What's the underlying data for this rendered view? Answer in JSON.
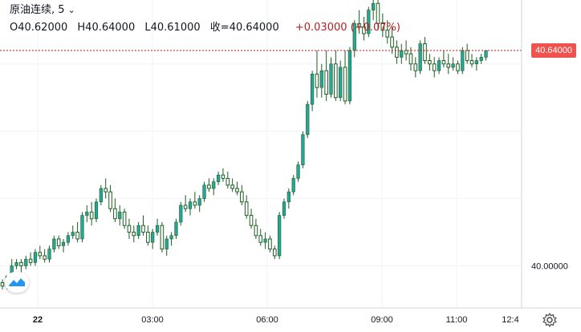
{
  "legend": {
    "symbol": "原油连续",
    "interval": ", 5",
    "caret": "⌄",
    "open": "O40.62000",
    "high": "H40.64000",
    "low": "L40.61000",
    "close_label": "收=",
    "close_value": "40.64000",
    "change": "+0.03000 (+0.07%)"
  },
  "last_price_label": "40.64000",
  "icons": {
    "logo": "tradingview-logo-icon",
    "settings": "gear-icon"
  },
  "colors": {
    "up": "#26a69a",
    "down": "#ef5350",
    "candle_body_dark": "#1b5e20",
    "wick": "#1b5e20",
    "grid": "#f0f3fa",
    "price_line": "#b71c1c"
  },
  "chart_data": {
    "type": "candlestick",
    "y_axis": {
      "min": 39.875,
      "max": 40.79,
      "ticks": [
        40.0
      ]
    },
    "x_ticks": [
      "22",
      "03:00",
      "06:00",
      "09:00",
      "11:00",
      "12:4"
    ],
    "last_price": 40.64,
    "candles": [
      [
        39.95,
        39.96,
        39.93,
        39.94
      ],
      [
        39.94,
        39.97,
        39.93,
        39.97
      ],
      [
        39.97,
        40.02,
        39.96,
        40.0
      ],
      [
        40.0,
        40.02,
        39.99,
        40.01
      ],
      [
        40.01,
        40.02,
        39.98,
        40.0
      ],
      [
        40.0,
        40.03,
        39.99,
        40.02
      ],
      [
        40.02,
        40.04,
        40.0,
        40.01
      ],
      [
        40.01,
        40.05,
        40.0,
        40.04
      ],
      [
        40.04,
        40.06,
        40.02,
        40.03
      ],
      [
        40.03,
        40.05,
        40.01,
        40.02
      ],
      [
        40.02,
        40.06,
        40.01,
        40.05
      ],
      [
        40.05,
        40.09,
        40.04,
        40.08
      ],
      [
        40.08,
        40.09,
        40.05,
        40.06
      ],
      [
        40.06,
        40.08,
        40.04,
        40.07
      ],
      [
        40.07,
        40.1,
        40.06,
        40.09
      ],
      [
        40.09,
        40.12,
        40.08,
        40.1
      ],
      [
        40.1,
        40.13,
        40.07,
        40.08
      ],
      [
        40.08,
        40.16,
        40.07,
        40.15
      ],
      [
        40.15,
        40.18,
        40.13,
        40.16
      ],
      [
        40.16,
        40.19,
        40.12,
        40.14
      ],
      [
        40.14,
        40.2,
        40.13,
        40.19
      ],
      [
        40.19,
        40.24,
        40.18,
        40.23
      ],
      [
        40.23,
        40.26,
        40.2,
        40.22
      ],
      [
        40.22,
        40.24,
        40.16,
        40.17
      ],
      [
        40.17,
        40.2,
        40.13,
        40.14
      ],
      [
        40.14,
        40.18,
        40.12,
        40.16
      ],
      [
        40.16,
        40.17,
        40.11,
        40.12
      ],
      [
        40.12,
        40.14,
        40.08,
        40.1
      ],
      [
        40.1,
        40.12,
        40.07,
        40.09
      ],
      [
        40.09,
        40.13,
        40.08,
        40.12
      ],
      [
        40.12,
        40.15,
        40.09,
        40.1
      ],
      [
        40.1,
        40.12,
        40.06,
        40.07
      ],
      [
        40.07,
        40.11,
        40.05,
        40.1
      ],
      [
        40.1,
        40.14,
        40.09,
        40.12
      ],
      [
        40.12,
        40.13,
        40.04,
        40.05
      ],
      [
        40.05,
        40.09,
        40.03,
        40.08
      ],
      [
        40.08,
        40.1,
        40.06,
        40.09
      ],
      [
        40.09,
        40.14,
        40.08,
        40.13
      ],
      [
        40.13,
        40.19,
        40.12,
        40.18
      ],
      [
        40.18,
        40.21,
        40.16,
        40.17
      ],
      [
        40.17,
        40.2,
        40.15,
        40.19
      ],
      [
        40.19,
        40.22,
        40.17,
        40.18
      ],
      [
        40.18,
        40.21,
        40.16,
        40.2
      ],
      [
        40.2,
        40.25,
        40.19,
        40.24
      ],
      [
        40.24,
        40.26,
        40.22,
        40.23
      ],
      [
        40.23,
        40.26,
        40.21,
        40.25
      ],
      [
        40.25,
        40.28,
        40.24,
        40.27
      ],
      [
        40.27,
        40.29,
        40.25,
        40.26
      ],
      [
        40.26,
        40.28,
        40.23,
        40.24
      ],
      [
        40.24,
        40.26,
        40.22,
        40.23
      ],
      [
        40.23,
        40.25,
        40.21,
        40.22
      ],
      [
        40.22,
        40.24,
        40.18,
        40.19
      ],
      [
        40.19,
        40.21,
        40.14,
        40.15
      ],
      [
        40.15,
        40.17,
        40.11,
        40.12
      ],
      [
        40.12,
        40.14,
        40.08,
        40.09
      ],
      [
        40.09,
        40.11,
        40.06,
        40.07
      ],
      [
        40.07,
        40.1,
        40.05,
        40.08
      ],
      [
        40.08,
        40.09,
        40.04,
        40.05
      ],
      [
        40.05,
        40.06,
        40.02,
        40.03
      ],
      [
        40.03,
        40.16,
        40.02,
        40.15
      ],
      [
        40.15,
        40.2,
        40.14,
        40.19
      ],
      [
        40.19,
        40.23,
        40.17,
        40.22
      ],
      [
        40.22,
        40.27,
        40.21,
        40.26
      ],
      [
        40.26,
        40.31,
        40.25,
        40.3
      ],
      [
        40.3,
        40.4,
        40.29,
        40.39
      ],
      [
        40.39,
        40.49,
        40.38,
        40.48
      ],
      [
        40.48,
        40.58,
        40.46,
        40.57
      ],
      [
        40.57,
        40.64,
        40.5,
        40.53
      ],
      [
        40.53,
        40.6,
        40.5,
        40.58
      ],
      [
        40.58,
        40.64,
        40.49,
        40.51
      ],
      [
        40.51,
        40.62,
        40.5,
        40.6
      ],
      [
        40.6,
        40.64,
        40.49,
        40.5
      ],
      [
        40.5,
        40.61,
        40.49,
        40.59
      ],
      [
        40.59,
        40.64,
        40.48,
        40.49
      ],
      [
        40.49,
        40.65,
        40.48,
        40.64
      ],
      [
        40.64,
        40.73,
        40.62,
        40.72
      ],
      [
        40.72,
        40.76,
        40.69,
        40.71
      ],
      [
        40.71,
        40.74,
        40.67,
        40.69
      ],
      [
        40.69,
        40.77,
        40.68,
        40.76
      ],
      [
        40.76,
        40.8,
        40.73,
        40.78
      ],
      [
        40.78,
        40.79,
        40.7,
        40.72
      ],
      [
        40.72,
        40.75,
        40.68,
        40.7
      ],
      [
        40.7,
        40.73,
        40.66,
        40.68
      ],
      [
        40.68,
        40.71,
        40.63,
        40.65
      ],
      [
        40.65,
        40.67,
        40.6,
        40.62
      ],
      [
        40.62,
        40.66,
        40.6,
        40.64
      ],
      [
        40.64,
        40.67,
        40.61,
        40.63
      ],
      [
        40.63,
        40.65,
        40.58,
        40.6
      ],
      [
        40.6,
        40.62,
        40.56,
        40.58
      ],
      [
        40.58,
        40.67,
        40.57,
        40.66
      ],
      [
        40.66,
        40.68,
        40.6,
        40.61
      ],
      [
        40.61,
        40.63,
        40.58,
        40.6
      ],
      [
        40.6,
        40.62,
        40.56,
        40.58
      ],
      [
        40.58,
        40.62,
        40.57,
        40.61
      ],
      [
        40.61,
        40.64,
        40.59,
        40.6
      ],
      [
        40.6,
        40.63,
        40.57,
        40.59
      ],
      [
        40.59,
        40.62,
        40.58,
        40.6
      ],
      [
        40.6,
        40.61,
        40.57,
        40.58
      ],
      [
        40.58,
        40.65,
        40.57,
        40.64
      ],
      [
        40.64,
        40.66,
        40.6,
        40.61
      ],
      [
        40.61,
        40.63,
        40.59,
        40.6
      ],
      [
        40.6,
        40.62,
        40.58,
        40.61
      ],
      [
        40.61,
        40.63,
        40.6,
        40.62
      ],
      [
        40.62,
        40.64,
        40.61,
        40.64
      ]
    ]
  }
}
